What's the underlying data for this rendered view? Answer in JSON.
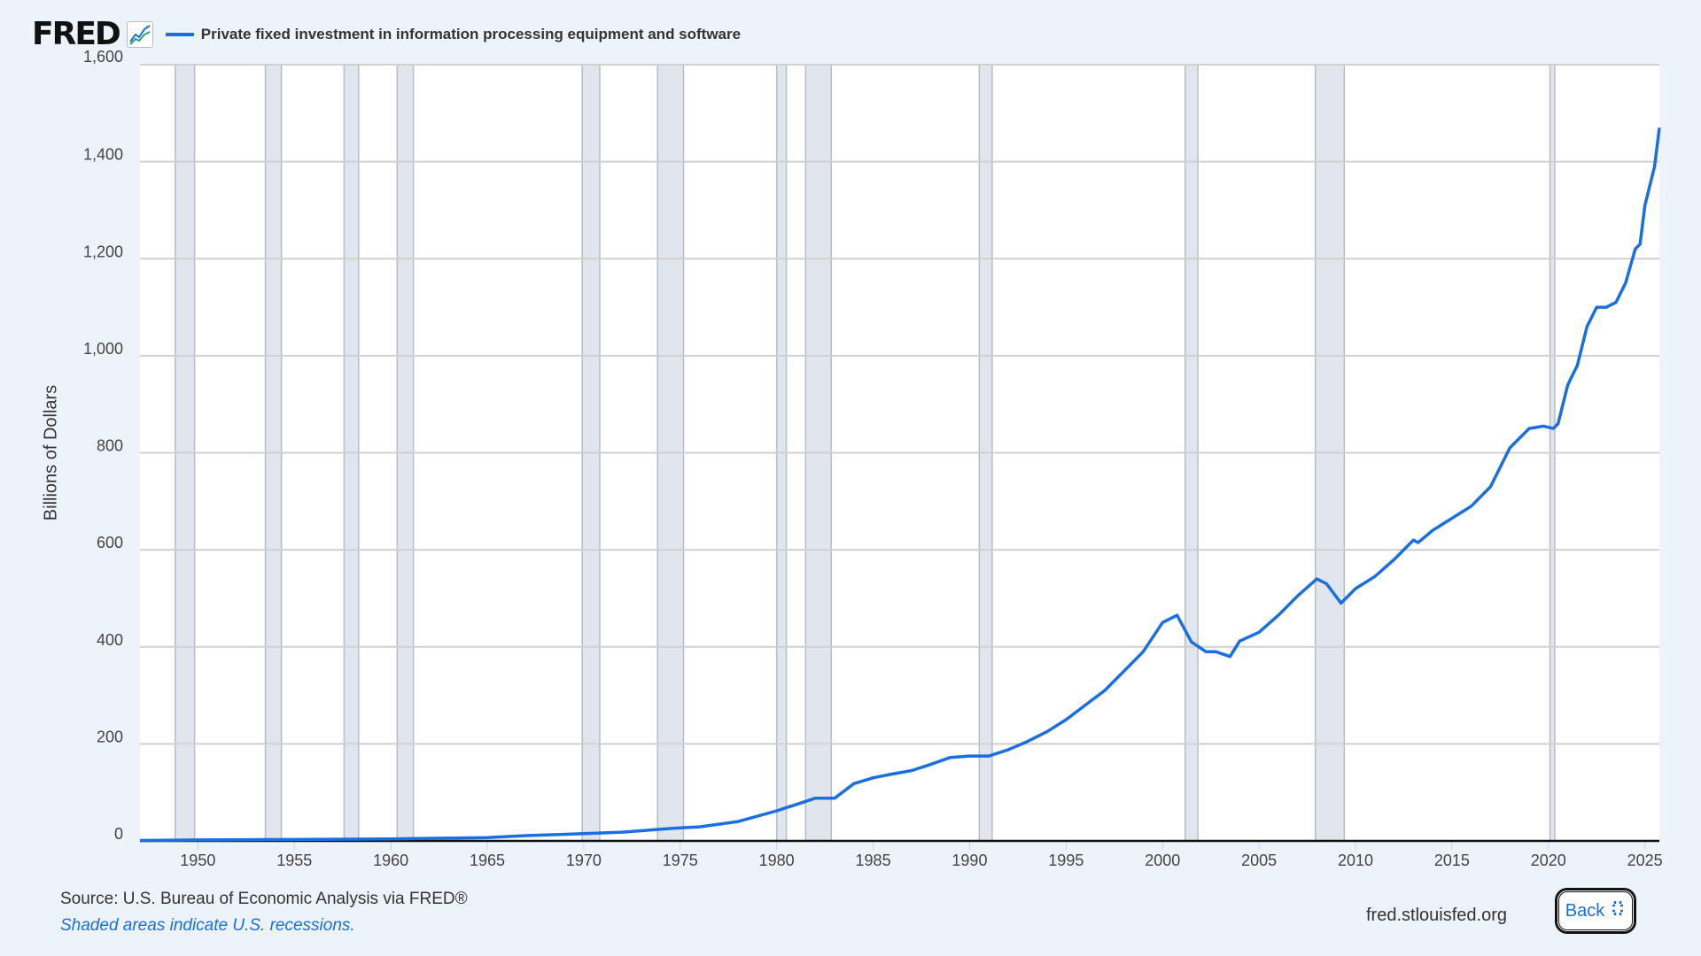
{
  "header": {
    "logo": "FRED",
    "logo_icon": "line-chart-icon",
    "series_title": "Private fixed investment in information processing equipment and software"
  },
  "footer": {
    "source": "Source: U.S. Bureau of Economic Analysis via FRED®",
    "note": "Shaded areas indicate U.S. recessions.",
    "site": "fred.stlouisfed.org",
    "back_label": "Back",
    "back_icon": "collapse-icon"
  },
  "colors": {
    "series": "#1a6fe0",
    "recession": "#e1e6ee",
    "background": "#edf3fb"
  },
  "chart_data": {
    "type": "line",
    "title": "Private fixed investment in information processing equipment and software",
    "ylabel": "Billions of Dollars",
    "xlabel": "",
    "ylim": [
      0,
      1600
    ],
    "xlim": [
      1947,
      2025.75
    ],
    "yticks": [
      0,
      200,
      400,
      600,
      800,
      1000,
      1200,
      1400,
      1600
    ],
    "ytick_labels": [
      "0",
      "200",
      "400",
      "600",
      "800",
      "1,000",
      "1,200",
      "1,400",
      "1,600"
    ],
    "xticks": [
      1950,
      1955,
      1960,
      1965,
      1970,
      1975,
      1980,
      1985,
      1990,
      1995,
      2000,
      2005,
      2010,
      2015,
      2020,
      2025
    ],
    "grid": true,
    "recessions": [
      [
        1948.83,
        1949.83
      ],
      [
        1953.5,
        1954.33
      ],
      [
        1957.58,
        1958.33
      ],
      [
        1960.33,
        1961.17
      ],
      [
        1969.92,
        1970.83
      ],
      [
        1973.83,
        1975.17
      ],
      [
        1980.0,
        1980.5
      ],
      [
        1981.5,
        1982.83
      ],
      [
        1990.5,
        1991.17
      ],
      [
        2001.17,
        2001.83
      ],
      [
        2007.92,
        2009.42
      ],
      [
        2020.08,
        2020.33
      ]
    ],
    "series": [
      {
        "x": [
          1947,
          1950,
          1955,
          1960,
          1965,
          1967,
          1970,
          1972,
          1974,
          1975,
          1976,
          1978,
          1980,
          1981,
          1982,
          1983,
          1984,
          1985,
          1986,
          1987,
          1988,
          1989,
          1990,
          1991,
          1992,
          1993,
          1994,
          1995,
          1996,
          1997,
          1998,
          1999,
          2000,
          2000.75,
          2001.5,
          2002.25,
          2002.75,
          2003.5,
          2004,
          2005,
          2006,
          2007,
          2008,
          2008.5,
          2009.25,
          2010,
          2011,
          2012,
          2013,
          2013.25,
          2014,
          2015,
          2016,
          2017,
          2018,
          2019,
          2019.75,
          2020.25,
          2020.5,
          2021,
          2021.5,
          2022,
          2022.5,
          2023,
          2023.5,
          2024,
          2024.5,
          2024.75,
          2025,
          2025.5,
          2025.75
        ],
        "values": [
          1,
          2,
          3,
          4,
          7,
          11,
          15,
          18,
          24,
          27,
          29,
          40,
          62,
          75,
          88,
          88,
          118,
          130,
          138,
          145,
          158,
          172,
          175,
          175,
          188,
          205,
          225,
          250,
          280,
          310,
          350,
          390,
          450,
          465,
          410,
          390,
          390,
          380,
          412,
          430,
          465,
          505,
          540,
          530,
          490,
          520,
          545,
          580,
          620,
          615,
          640,
          665,
          690,
          730,
          810,
          850,
          855,
          850,
          860,
          940,
          980,
          1060,
          1100,
          1100,
          1110,
          1150,
          1220,
          1230,
          1310,
          1390,
          1470
        ]
      }
    ]
  }
}
